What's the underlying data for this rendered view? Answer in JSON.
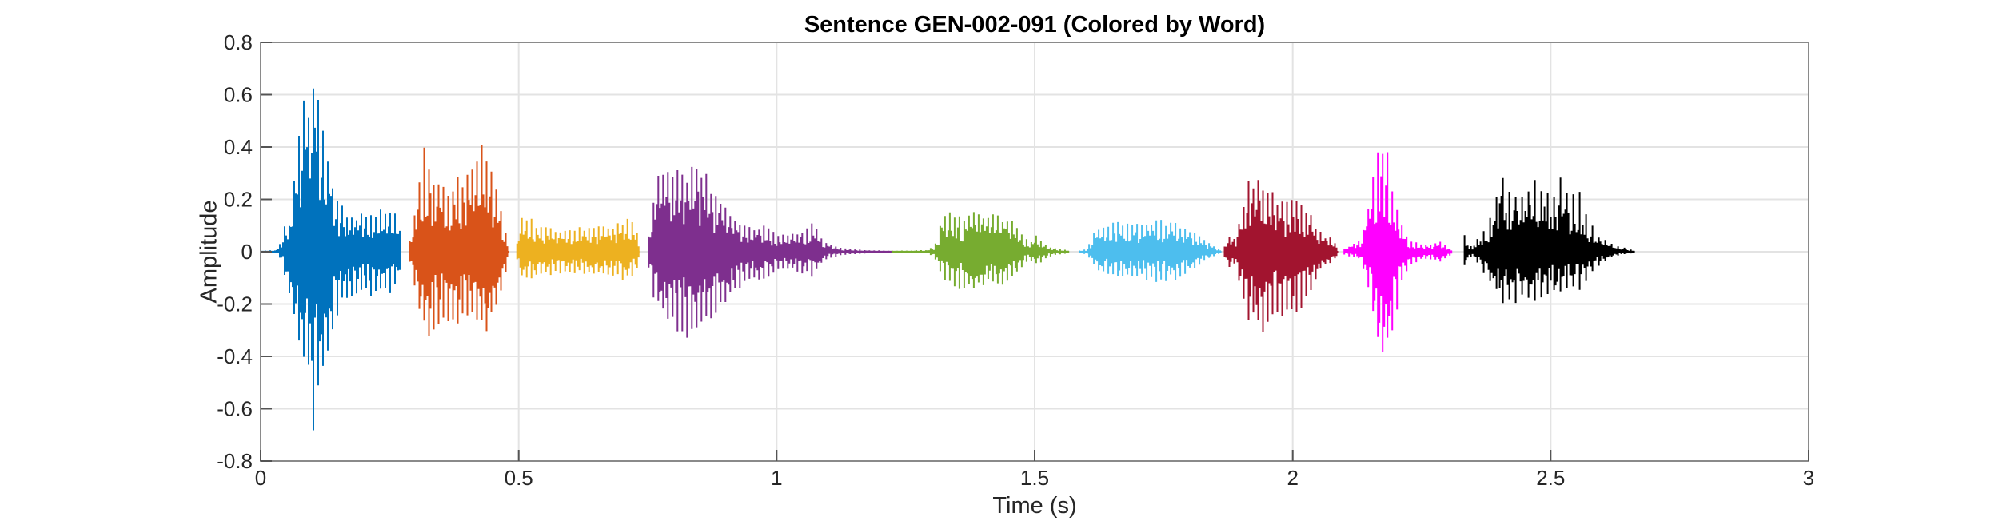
{
  "chart_data": {
    "type": "line",
    "subtype": "audio-waveform-by-word",
    "title": "Sentence GEN-002-091 (Colored by Word)",
    "xlabel": "Time (s)",
    "ylabel": "Amplitude",
    "xlim": [
      0,
      3
    ],
    "ylim": [
      -0.8,
      0.8
    ],
    "xticks": [
      0,
      0.5,
      1,
      1.5,
      2,
      2.5,
      3
    ],
    "xtick_labels": [
      "0",
      "0.5",
      "1",
      "1.5",
      "2",
      "2.5",
      "3"
    ],
    "yticks": [
      -0.8,
      -0.6,
      -0.4,
      -0.2,
      0,
      0.2,
      0.4,
      0.6,
      0.8
    ],
    "ytick_labels": [
      "-0.8",
      "-0.6",
      "-0.4",
      "-0.2",
      "0",
      "0.2",
      "0.4",
      "0.6",
      "0.8"
    ],
    "grid": true,
    "legend": "none",
    "colors": {
      "grid": "#e3e3e3",
      "axes_box": "#8a8a8a",
      "tick_mark": "#545454",
      "tick_label": "#262626",
      "title": "#000000",
      "background": "#ffffff"
    },
    "series": [
      {
        "name": "word-1",
        "color": "#0072BD",
        "t_start": 0.0,
        "t_end": 0.272,
        "envelope": [
          [
            0.0,
            0.004,
            -0.004
          ],
          [
            0.03,
            0.006,
            -0.006
          ],
          [
            0.042,
            0.05,
            -0.04
          ],
          [
            0.048,
            0.13,
            -0.1
          ],
          [
            0.055,
            0.1,
            -0.18
          ],
          [
            0.065,
            0.3,
            -0.26
          ],
          [
            0.075,
            0.5,
            -0.38
          ],
          [
            0.085,
            0.55,
            -0.48
          ],
          [
            0.095,
            0.6,
            -0.52
          ],
          [
            0.102,
            0.73,
            -0.68
          ],
          [
            0.11,
            0.62,
            -0.5
          ],
          [
            0.12,
            0.5,
            -0.45
          ],
          [
            0.13,
            0.38,
            -0.4
          ],
          [
            0.14,
            0.25,
            -0.3
          ],
          [
            0.15,
            0.18,
            -0.22
          ],
          [
            0.165,
            0.15,
            -0.18
          ],
          [
            0.18,
            0.14,
            -0.16
          ],
          [
            0.2,
            0.15,
            -0.15
          ],
          [
            0.22,
            0.14,
            -0.16
          ],
          [
            0.24,
            0.16,
            -0.15
          ],
          [
            0.255,
            0.17,
            -0.16
          ],
          [
            0.265,
            0.13,
            -0.12
          ],
          [
            0.272,
            0.05,
            -0.05
          ]
        ]
      },
      {
        "name": "word-2",
        "color": "#D95319",
        "t_start": 0.289,
        "t_end": 0.481,
        "envelope": [
          [
            0.289,
            0.04,
            -0.04
          ],
          [
            0.298,
            0.15,
            -0.12
          ],
          [
            0.308,
            0.28,
            -0.22
          ],
          [
            0.318,
            0.38,
            -0.3
          ],
          [
            0.325,
            0.33,
            -0.38
          ],
          [
            0.335,
            0.3,
            -0.3
          ],
          [
            0.348,
            0.27,
            -0.26
          ],
          [
            0.36,
            0.24,
            -0.28
          ],
          [
            0.372,
            0.25,
            -0.24
          ],
          [
            0.385,
            0.27,
            -0.26
          ],
          [
            0.398,
            0.28,
            -0.28
          ],
          [
            0.41,
            0.33,
            -0.26
          ],
          [
            0.422,
            0.38,
            -0.28
          ],
          [
            0.43,
            0.45,
            -0.3
          ],
          [
            0.44,
            0.36,
            -0.31
          ],
          [
            0.45,
            0.28,
            -0.26
          ],
          [
            0.462,
            0.18,
            -0.18
          ],
          [
            0.472,
            0.1,
            -0.1
          ],
          [
            0.481,
            0.04,
            -0.04
          ]
        ]
      },
      {
        "name": "word-3",
        "color": "#EDB120",
        "t_start": 0.497,
        "t_end": 0.734,
        "envelope": [
          [
            0.497,
            0.03,
            -0.03
          ],
          [
            0.505,
            0.12,
            -0.1
          ],
          [
            0.515,
            0.13,
            -0.11
          ],
          [
            0.53,
            0.11,
            -0.1
          ],
          [
            0.55,
            0.09,
            -0.09
          ],
          [
            0.575,
            0.08,
            -0.08
          ],
          [
            0.6,
            0.08,
            -0.08
          ],
          [
            0.625,
            0.09,
            -0.08
          ],
          [
            0.65,
            0.09,
            -0.09
          ],
          [
            0.675,
            0.1,
            -0.09
          ],
          [
            0.7,
            0.11,
            -0.1
          ],
          [
            0.718,
            0.13,
            -0.11
          ],
          [
            0.728,
            0.08,
            -0.07
          ],
          [
            0.734,
            0.03,
            -0.03
          ]
        ]
      },
      {
        "name": "word-4",
        "color": "#7E2F8E",
        "t_start": 0.752,
        "t_end": 1.224,
        "envelope": [
          [
            0.752,
            0.06,
            -0.06
          ],
          [
            0.762,
            0.22,
            -0.18
          ],
          [
            0.775,
            0.3,
            -0.24
          ],
          [
            0.79,
            0.32,
            -0.28
          ],
          [
            0.805,
            0.31,
            -0.3
          ],
          [
            0.82,
            0.3,
            -0.32
          ],
          [
            0.835,
            0.31,
            -0.31
          ],
          [
            0.848,
            0.34,
            -0.3
          ],
          [
            0.862,
            0.28,
            -0.28
          ],
          [
            0.878,
            0.24,
            -0.26
          ],
          [
            0.895,
            0.19,
            -0.22
          ],
          [
            0.912,
            0.14,
            -0.17
          ],
          [
            0.93,
            0.11,
            -0.13
          ],
          [
            0.95,
            0.09,
            -0.1
          ],
          [
            0.97,
            0.1,
            -0.1
          ],
          [
            0.99,
            0.08,
            -0.09
          ],
          [
            1.01,
            0.06,
            -0.07
          ],
          [
            1.035,
            0.07,
            -0.07
          ],
          [
            1.055,
            0.09,
            -0.08
          ],
          [
            1.07,
            0.12,
            -0.09
          ],
          [
            1.082,
            0.07,
            -0.06
          ],
          [
            1.095,
            0.04,
            -0.03
          ],
          [
            1.11,
            0.02,
            -0.02
          ],
          [
            1.14,
            0.01,
            -0.01
          ],
          [
            1.18,
            0.006,
            -0.006
          ],
          [
            1.224,
            0.004,
            -0.004
          ]
        ]
      },
      {
        "name": "word-5",
        "color": "#77AC30",
        "t_start": 1.224,
        "t_end": 1.567,
        "envelope": [
          [
            1.224,
            0.004,
            -0.004
          ],
          [
            1.29,
            0.006,
            -0.006
          ],
          [
            1.305,
            0.02,
            -0.02
          ],
          [
            1.313,
            0.05,
            -0.05
          ],
          [
            1.32,
            0.13,
            -0.11
          ],
          [
            1.335,
            0.14,
            -0.12
          ],
          [
            1.35,
            0.13,
            -0.13
          ],
          [
            1.365,
            0.12,
            -0.14
          ],
          [
            1.38,
            0.14,
            -0.15
          ],
          [
            1.395,
            0.15,
            -0.13
          ],
          [
            1.41,
            0.14,
            -0.12
          ],
          [
            1.425,
            0.14,
            -0.13
          ],
          [
            1.44,
            0.13,
            -0.13
          ],
          [
            1.455,
            0.12,
            -0.11
          ],
          [
            1.468,
            0.09,
            -0.08
          ],
          [
            1.48,
            0.05,
            -0.04
          ],
          [
            1.492,
            0.04,
            -0.03
          ],
          [
            1.502,
            0.06,
            -0.05
          ],
          [
            1.512,
            0.04,
            -0.04
          ],
          [
            1.525,
            0.02,
            -0.02
          ],
          [
            1.545,
            0.012,
            -0.012
          ],
          [
            1.567,
            0.006,
            -0.006
          ]
        ]
      },
      {
        "name": "word-6",
        "color": "#4DBEEE",
        "t_start": 1.587,
        "t_end": 1.862,
        "envelope": [
          [
            1.587,
            0.005,
            -0.005
          ],
          [
            1.6,
            0.01,
            -0.01
          ],
          [
            1.608,
            0.04,
            -0.03
          ],
          [
            1.618,
            0.08,
            -0.06
          ],
          [
            1.63,
            0.1,
            -0.08
          ],
          [
            1.645,
            0.11,
            -0.09
          ],
          [
            1.66,
            0.11,
            -0.1
          ],
          [
            1.675,
            0.1,
            -0.1
          ],
          [
            1.69,
            0.1,
            -0.09
          ],
          [
            1.705,
            0.11,
            -0.1
          ],
          [
            1.72,
            0.12,
            -0.1
          ],
          [
            1.735,
            0.12,
            -0.11
          ],
          [
            1.75,
            0.11,
            -0.11
          ],
          [
            1.765,
            0.11,
            -0.1
          ],
          [
            1.78,
            0.1,
            -0.1
          ],
          [
            1.795,
            0.09,
            -0.08
          ],
          [
            1.81,
            0.07,
            -0.06
          ],
          [
            1.825,
            0.05,
            -0.04
          ],
          [
            1.84,
            0.03,
            -0.025
          ],
          [
            1.855,
            0.012,
            -0.01
          ],
          [
            1.862,
            0.006,
            -0.006
          ]
        ]
      },
      {
        "name": "word-7",
        "color": "#A2142F",
        "t_start": 1.868,
        "t_end": 2.088,
        "envelope": [
          [
            1.868,
            0.02,
            -0.02
          ],
          [
            1.878,
            0.07,
            -0.06
          ],
          [
            1.888,
            0.05,
            -0.04
          ],
          [
            1.9,
            0.15,
            -0.14
          ],
          [
            1.912,
            0.26,
            -0.24
          ],
          [
            1.925,
            0.29,
            -0.28
          ],
          [
            1.94,
            0.28,
            -0.33
          ],
          [
            1.955,
            0.26,
            -0.28
          ],
          [
            1.97,
            0.2,
            -0.22
          ],
          [
            1.985,
            0.18,
            -0.24
          ],
          [
            2.0,
            0.22,
            -0.26
          ],
          [
            2.015,
            0.2,
            -0.22
          ],
          [
            2.03,
            0.16,
            -0.16
          ],
          [
            2.045,
            0.1,
            -0.1
          ],
          [
            2.06,
            0.06,
            -0.06
          ],
          [
            2.075,
            0.05,
            -0.04
          ],
          [
            2.088,
            0.02,
            -0.02
          ]
        ]
      },
      {
        "name": "word-8",
        "color": "#FF00FF",
        "t_start": 2.1,
        "t_end": 2.308,
        "envelope": [
          [
            2.1,
            0.01,
            -0.01
          ],
          [
            2.115,
            0.03,
            -0.02
          ],
          [
            2.13,
            0.04,
            -0.03
          ],
          [
            2.145,
            0.15,
            -0.12
          ],
          [
            2.155,
            0.3,
            -0.25
          ],
          [
            2.165,
            0.38,
            -0.35
          ],
          [
            2.175,
            0.42,
            -0.46
          ],
          [
            2.185,
            0.36,
            -0.38
          ],
          [
            2.195,
            0.25,
            -0.28
          ],
          [
            2.205,
            0.15,
            -0.18
          ],
          [
            2.215,
            0.08,
            -0.1
          ],
          [
            2.23,
            0.04,
            -0.05
          ],
          [
            2.25,
            0.03,
            -0.03
          ],
          [
            2.27,
            0.03,
            -0.03
          ],
          [
            2.285,
            0.04,
            -0.04
          ],
          [
            2.3,
            0.02,
            -0.02
          ],
          [
            2.308,
            0.01,
            -0.01
          ]
        ]
      },
      {
        "name": "word-9",
        "color": "#000000",
        "t_start": 2.333,
        "t_end": 2.662,
        "envelope": [
          [
            2.333,
            0.07,
            -0.06
          ],
          [
            2.345,
            0.02,
            -0.02
          ],
          [
            2.365,
            0.06,
            -0.06
          ],
          [
            2.38,
            0.12,
            -0.12
          ],
          [
            2.395,
            0.22,
            -0.16
          ],
          [
            2.405,
            0.32,
            -0.22
          ],
          [
            2.42,
            0.26,
            -0.18
          ],
          [
            2.435,
            0.22,
            -0.2
          ],
          [
            2.45,
            0.24,
            -0.16
          ],
          [
            2.465,
            0.28,
            -0.18
          ],
          [
            2.48,
            0.22,
            -0.17
          ],
          [
            2.495,
            0.26,
            -0.15
          ],
          [
            2.51,
            0.24,
            -0.18
          ],
          [
            2.526,
            0.28,
            -0.16
          ],
          [
            2.54,
            0.2,
            -0.15
          ],
          [
            2.555,
            0.22,
            -0.14
          ],
          [
            2.57,
            0.14,
            -0.1
          ],
          [
            2.585,
            0.08,
            -0.07
          ],
          [
            2.6,
            0.05,
            -0.04
          ],
          [
            2.62,
            0.03,
            -0.02
          ],
          [
            2.645,
            0.015,
            -0.01
          ],
          [
            2.662,
            0.005,
            -0.005
          ]
        ]
      }
    ]
  }
}
